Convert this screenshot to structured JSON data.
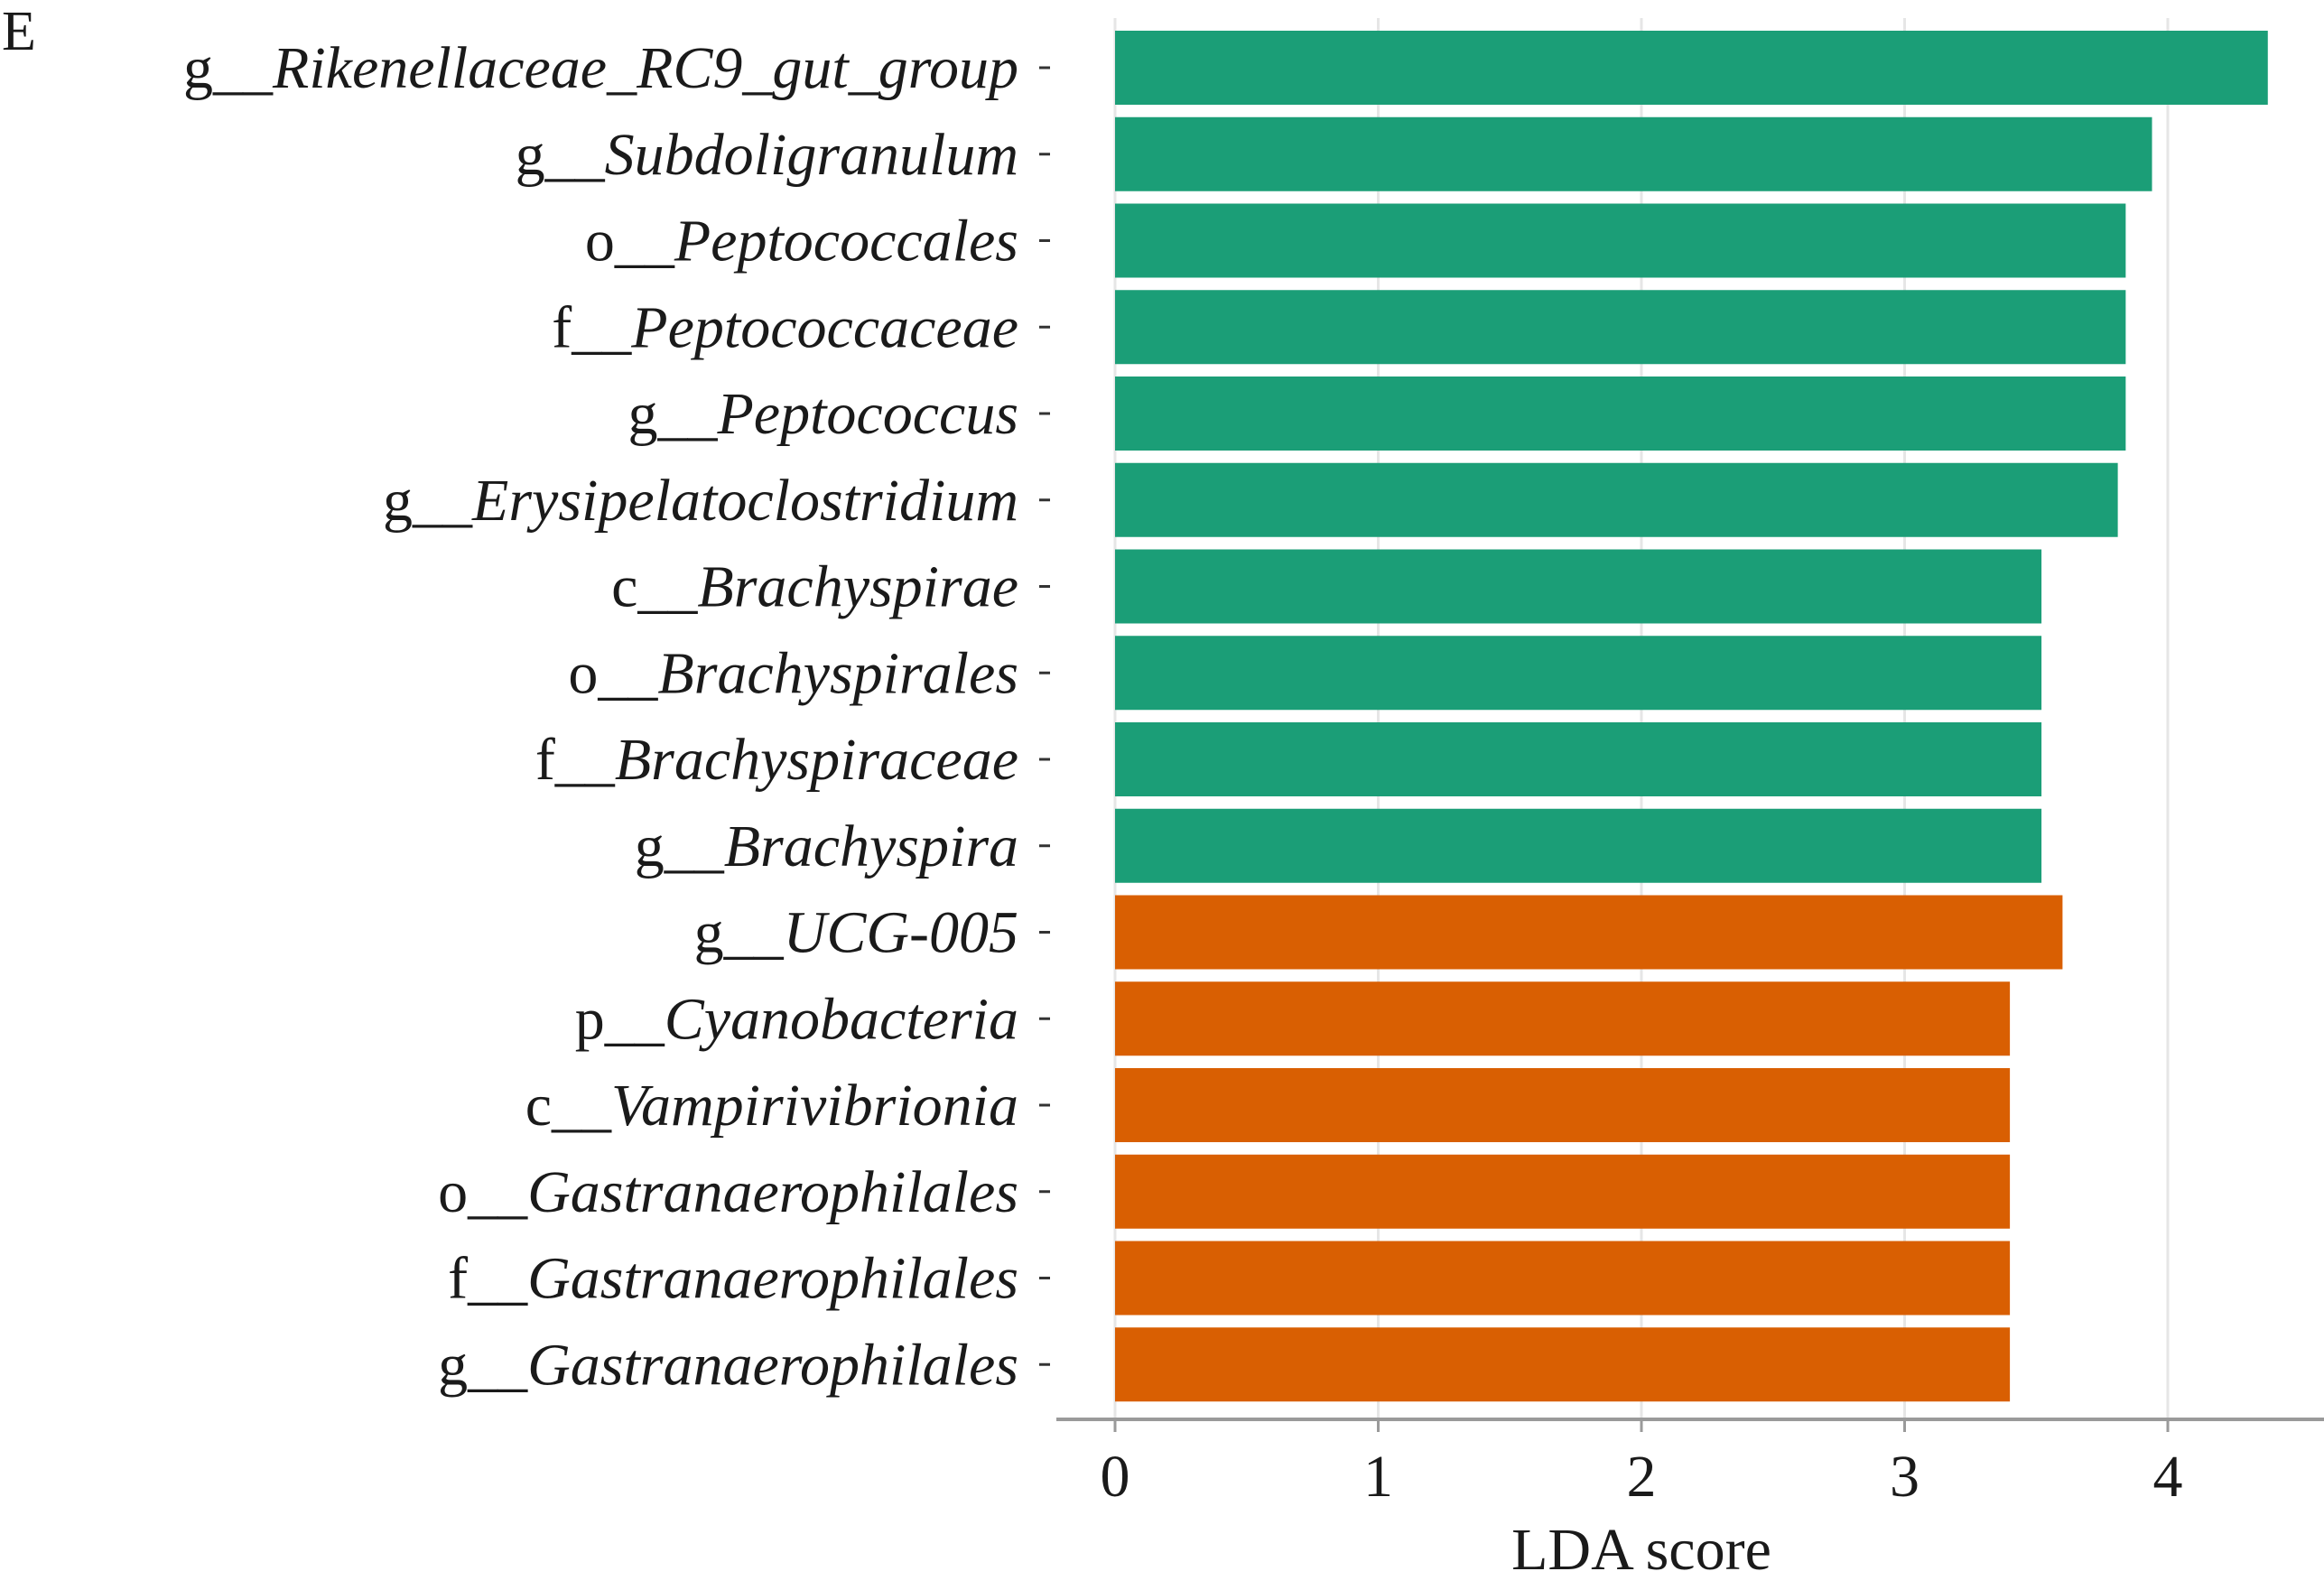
{
  "panel_label": "E",
  "colors": {
    "group_1": "#1b9e77",
    "group_2": "#d95f02",
    "grid": "#e6e6e6",
    "axis": "#9a9a9a"
  },
  "chart_data": {
    "type": "bar",
    "orientation": "horizontal",
    "xlabel": "LDA score",
    "ylabel": "",
    "xlim": [
      0,
      4.6
    ],
    "xticks": [
      0,
      1,
      2,
      3,
      4
    ],
    "grid": "vertical",
    "categories": [
      {
        "prefix": "g__",
        "name": "Rikenellaceae_RC9_gut_group",
        "value": 4.38,
        "group": "group_1"
      },
      {
        "prefix": "g__",
        "name": "Subdoligranulum",
        "value": 3.94,
        "group": "group_1"
      },
      {
        "prefix": "o__",
        "name": "Peptococcales",
        "value": 3.84,
        "group": "group_1"
      },
      {
        "prefix": "f__",
        "name": "Peptococcaceae",
        "value": 3.84,
        "group": "group_1"
      },
      {
        "prefix": "g__",
        "name": "Peptococcus",
        "value": 3.84,
        "group": "group_1"
      },
      {
        "prefix": "g__",
        "name": "Erysipelatoclostridium",
        "value": 3.81,
        "group": "group_1"
      },
      {
        "prefix": "c__",
        "name": "Brachyspirae",
        "value": 3.52,
        "group": "group_1"
      },
      {
        "prefix": "o__",
        "name": "Brachyspirales",
        "value": 3.52,
        "group": "group_1"
      },
      {
        "prefix": "f__",
        "name": "Brachyspiraceae",
        "value": 3.52,
        "group": "group_1"
      },
      {
        "prefix": "g__",
        "name": "Brachyspira",
        "value": 3.52,
        "group": "group_1"
      },
      {
        "prefix": "g__",
        "name": "UCG-005",
        "value": 3.6,
        "group": "group_2"
      },
      {
        "prefix": "p__",
        "name": "Cyanobacteria",
        "value": 3.4,
        "group": "group_2"
      },
      {
        "prefix": "c__",
        "name": "Vampirivibrionia",
        "value": 3.4,
        "group": "group_2"
      },
      {
        "prefix": "o__",
        "name": "Gastranaerophilales",
        "value": 3.4,
        "group": "group_2"
      },
      {
        "prefix": "f__",
        "name": "Gastranaerophilales",
        "value": 3.4,
        "group": "group_2"
      },
      {
        "prefix": "g__",
        "name": "Gastranaerophilales",
        "value": 3.4,
        "group": "group_2"
      }
    ]
  }
}
